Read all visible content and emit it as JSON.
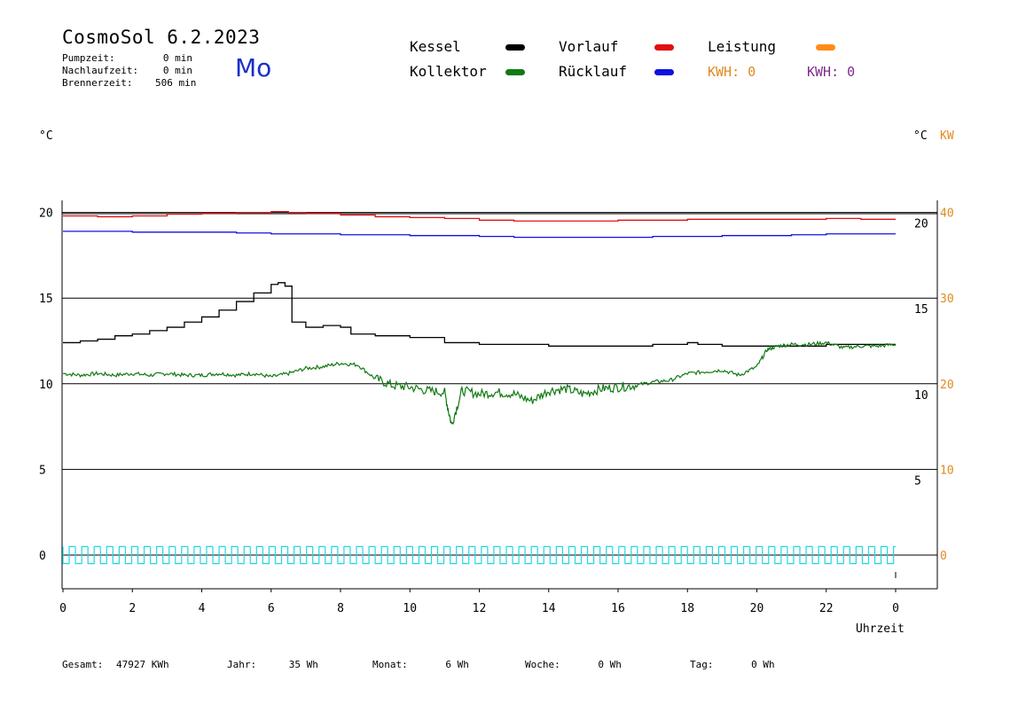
{
  "header": {
    "title": "CosmoSol 6.2.2023",
    "day": "Mo",
    "pump_label": "Pumpzeit:",
    "pump_value": "0 min",
    "afterrun_label": "Nachlaufzeit:",
    "afterrun_value": "0 min",
    "burner_label": "Brennerzeit:",
    "burner_value": "506 min"
  },
  "legend": {
    "kessel": "Kessel",
    "kollektor": "Kollektor",
    "vorlauf": "Vorlauf",
    "ruecklauf": "Rücklauf",
    "leistung": "Leistung",
    "kwh_orange": "KWH: 0",
    "kwh_purple": "KWH: 0"
  },
  "colors": {
    "kessel": "#000000",
    "kollektor": "#117a11",
    "vorlauf": "#e01010",
    "ruecklauf": "#1010e0",
    "leistung": "#ff8c1a",
    "kwh_orange": "#e08a20",
    "kwh_purple": "#7b2c8c",
    "pump": "#22d8e0"
  },
  "axis_units": {
    "left": "°C",
    "right_c": "°C",
    "right_kw": "KW",
    "x_label": "Uhrzeit"
  },
  "footer": {
    "total_label": "Gesamt:",
    "total_value": "47927 KWh",
    "year_label": "Jahr:",
    "year_value": "35 Wh",
    "month_label": "Monat:",
    "month_value": "6 Wh",
    "week_label": "Woche:",
    "week_value": "0 Wh",
    "day_label": "Tag:",
    "day_value": "0 Wh"
  },
  "chart_data": {
    "type": "line",
    "xlabel": "Uhrzeit",
    "x_ticks": [
      "0",
      "2",
      "4",
      "6",
      "8",
      "10",
      "12",
      "14",
      "16",
      "18",
      "20",
      "22",
      "0"
    ],
    "y_left_ticks": [
      0,
      5,
      10,
      15,
      20
    ],
    "y_right_c_ticks": [
      5,
      10,
      15,
      20
    ],
    "y_right_kw_ticks": [
      0,
      10,
      20,
      30,
      40
    ],
    "ylim": [
      -1.5,
      21.5
    ],
    "xlim": [
      0,
      24
    ],
    "series": [
      {
        "name": "Vorlauf",
        "key": "vorlauf",
        "x": [
          0,
          1,
          2,
          3,
          4,
          5,
          6,
          6.5,
          7,
          8,
          9,
          10,
          11,
          12,
          13,
          14,
          15,
          16,
          17,
          18,
          19,
          20,
          21,
          22,
          23,
          24
        ],
        "y": [
          19.8,
          19.75,
          19.8,
          19.9,
          19.95,
          20.0,
          20.05,
          20.0,
          19.95,
          19.85,
          19.75,
          19.7,
          19.65,
          19.55,
          19.5,
          19.5,
          19.5,
          19.55,
          19.55,
          19.6,
          19.6,
          19.6,
          19.6,
          19.65,
          19.6,
          19.6
        ]
      },
      {
        "name": "Rücklauf",
        "key": "ruecklauf",
        "x": [
          0,
          1,
          2,
          3,
          4,
          5,
          6,
          7,
          8,
          9,
          10,
          11,
          12,
          13,
          14,
          15,
          16,
          17,
          18,
          19,
          20,
          21,
          22,
          23,
          24
        ],
        "y": [
          18.9,
          18.9,
          18.85,
          18.85,
          18.85,
          18.8,
          18.75,
          18.75,
          18.7,
          18.7,
          18.65,
          18.65,
          18.6,
          18.55,
          18.55,
          18.55,
          18.55,
          18.6,
          18.6,
          18.65,
          18.65,
          18.7,
          18.75,
          18.75,
          18.75
        ]
      },
      {
        "name": "Kessel",
        "key": "kessel",
        "x": [
          0,
          0.5,
          1,
          1.5,
          2,
          2.5,
          3,
          3.5,
          4,
          4.5,
          5,
          5.5,
          6,
          6.2,
          6.4,
          6.6,
          7,
          7.5,
          8,
          8.3,
          9,
          10,
          11,
          12,
          13,
          14,
          15,
          16,
          17,
          18,
          18.3,
          19,
          20,
          21,
          22,
          23,
          24
        ],
        "y": [
          12.4,
          12.5,
          12.6,
          12.8,
          12.9,
          13.1,
          13.3,
          13.6,
          13.9,
          14.3,
          14.8,
          15.3,
          15.8,
          15.9,
          15.7,
          13.6,
          13.3,
          13.4,
          13.3,
          12.9,
          12.8,
          12.7,
          12.4,
          12.3,
          12.3,
          12.2,
          12.2,
          12.2,
          12.3,
          12.4,
          12.3,
          12.2,
          12.2,
          12.2,
          12.3,
          12.3,
          12.3
        ]
      },
      {
        "name": "Kollektor",
        "key": "kollektor",
        "x": [
          0,
          0.5,
          1,
          1.5,
          2,
          2.5,
          3,
          3.5,
          4,
          4.5,
          5,
          5.5,
          6,
          6.5,
          7,
          7.5,
          8,
          8.5,
          9,
          9.5,
          10,
          10.5,
          11,
          11.2,
          11.5,
          12,
          12.5,
          13,
          13.5,
          14,
          14.5,
          15,
          15.5,
          16,
          16.5,
          17,
          17.5,
          18,
          18.5,
          19,
          19.5,
          20,
          20.3,
          20.6,
          21,
          21.5,
          22,
          22.5,
          23,
          23.5,
          24
        ],
        "y": [
          10.6,
          10.5,
          10.6,
          10.5,
          10.6,
          10.5,
          10.6,
          10.5,
          10.5,
          10.6,
          10.5,
          10.6,
          10.4,
          10.6,
          10.9,
          11.0,
          11.2,
          11.1,
          10.3,
          9.9,
          9.8,
          9.6,
          9.5,
          7.6,
          9.6,
          9.4,
          9.5,
          9.4,
          9.0,
          9.6,
          9.7,
          9.4,
          9.7,
          9.8,
          9.9,
          10.1,
          10.2,
          10.6,
          10.7,
          10.8,
          10.5,
          11.0,
          12.0,
          12.2,
          12.3,
          12.3,
          12.4,
          12.1,
          12.2,
          12.2,
          12.3
        ]
      },
      {
        "name": "Pumpe",
        "key": "pump",
        "type": "pulse",
        "x_start": 0,
        "x_end": 24,
        "y_low": -0.5,
        "y_high": 0.5
      }
    ]
  }
}
